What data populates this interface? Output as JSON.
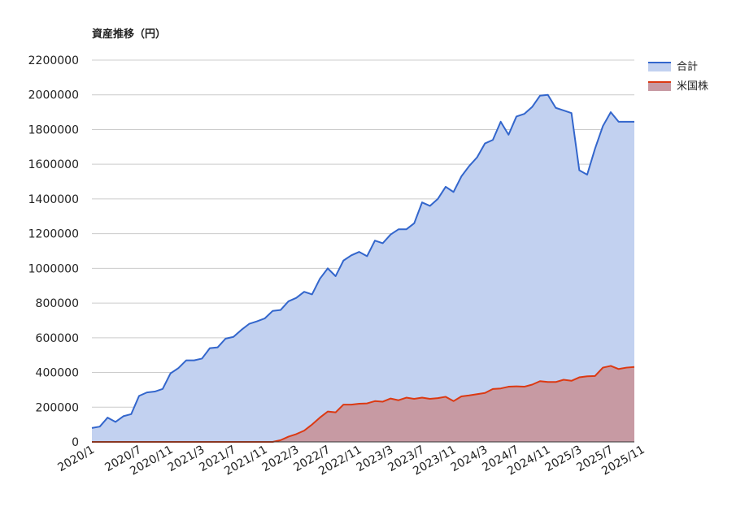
{
  "chart_data": {
    "type": "area",
    "title": "資産推移（円）",
    "xlabel": "",
    "ylabel": "",
    "ylim": [
      0,
      2200000
    ],
    "yticks": [
      "0",
      "200000",
      "400000",
      "600000",
      "800000",
      "1000000",
      "1200000",
      "1400000",
      "1600000",
      "1800000",
      "2000000",
      "2200000"
    ],
    "xticks": [
      {
        "label": "2020/1",
        "index": 0
      },
      {
        "label": "2020/7",
        "index": 6
      },
      {
        "label": "2020/11",
        "index": 10
      },
      {
        "label": "2021/3",
        "index": 14
      },
      {
        "label": "2021/7",
        "index": 18
      },
      {
        "label": "2021/11",
        "index": 22
      },
      {
        "label": "2022/3",
        "index": 26
      },
      {
        "label": "2022/7",
        "index": 30
      },
      {
        "label": "2022/11",
        "index": 34
      },
      {
        "label": "2023/3",
        "index": 38
      },
      {
        "label": "2023/7",
        "index": 42
      },
      {
        "label": "2023/11",
        "index": 46
      },
      {
        "label": "2024/3",
        "index": 50
      },
      {
        "label": "2024/7",
        "index": 54
      },
      {
        "label": "2024/11",
        "index": 58
      },
      {
        "label": "2025/3",
        "index": 62
      },
      {
        "label": "2025/7",
        "index": 66
      },
      {
        "label": "2025/11",
        "index": 70
      }
    ],
    "grid": true,
    "legend_position": "right",
    "series": [
      {
        "name": "合計",
        "line_color": "#3366cc",
        "fill_color": "#c2d1f0",
        "values": [
          80000,
          88000,
          140000,
          115000,
          148000,
          160000,
          265000,
          285000,
          290000,
          305000,
          395000,
          425000,
          470000,
          470000,
          480000,
          540000,
          545000,
          595000,
          605000,
          645000,
          680000,
          695000,
          712000,
          755000,
          760000,
          810000,
          830000,
          865000,
          850000,
          940000,
          1000000,
          955000,
          1045000,
          1075000,
          1095000,
          1070000,
          1160000,
          1145000,
          1195000,
          1225000,
          1225000,
          1260000,
          1380000,
          1360000,
          1400000,
          1470000,
          1440000,
          1530000,
          1590000,
          1640000,
          1720000,
          1740000,
          1845000,
          1770000,
          1875000,
          1890000,
          1930000,
          1995000,
          2000000,
          1925000,
          1910000,
          1895000,
          1565000,
          1540000,
          1690000,
          1820000,
          1900000,
          1845000,
          1845000,
          1845000
        ]
      },
      {
        "name": "米国株",
        "line_color": "#dc3912",
        "fill_color": "#c79aa3",
        "values": [
          0,
          0,
          0,
          0,
          0,
          0,
          0,
          0,
          0,
          0,
          0,
          0,
          0,
          0,
          0,
          0,
          0,
          0,
          0,
          0,
          0,
          0,
          0,
          0,
          10000,
          30000,
          45000,
          65000,
          100000,
          140000,
          175000,
          170000,
          215000,
          215000,
          220000,
          222000,
          235000,
          232000,
          250000,
          240000,
          255000,
          248000,
          255000,
          248000,
          252000,
          260000,
          235000,
          262000,
          268000,
          275000,
          282000,
          305000,
          308000,
          318000,
          320000,
          318000,
          330000,
          350000,
          345000,
          345000,
          358000,
          352000,
          372000,
          378000,
          380000,
          428000,
          438000,
          420000,
          428000,
          432000
        ]
      }
    ]
  }
}
